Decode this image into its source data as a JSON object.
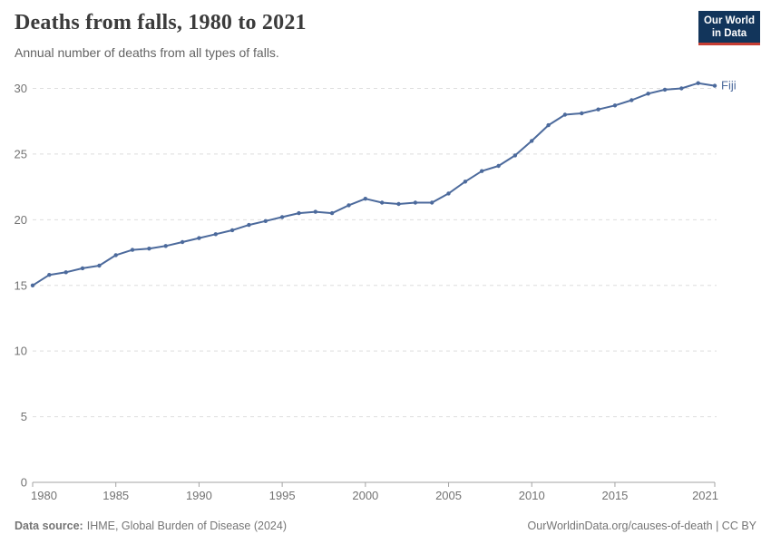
{
  "header": {
    "title": "Deaths from falls, 1980 to 2021",
    "subtitle": "Annual number of deaths from all types of falls.",
    "logo": {
      "line1": "Our World",
      "line2": "in Data"
    }
  },
  "chart_data": {
    "type": "line",
    "title": "Deaths from falls, 1980 to 2021",
    "subtitle": "Annual number of deaths from all types of falls.",
    "xlabel": "",
    "ylabel": "",
    "x": [
      1980,
      1981,
      1982,
      1983,
      1984,
      1985,
      1986,
      1987,
      1988,
      1989,
      1990,
      1991,
      1992,
      1993,
      1994,
      1995,
      1996,
      1997,
      1998,
      1999,
      2000,
      2001,
      2002,
      2003,
      2004,
      2005,
      2006,
      2007,
      2008,
      2009,
      2010,
      2011,
      2012,
      2013,
      2014,
      2015,
      2016,
      2017,
      2018,
      2019,
      2020,
      2021
    ],
    "series": [
      {
        "name": "Fiji",
        "color": "#4C6A9C",
        "values": [
          15.0,
          15.8,
          16.0,
          16.3,
          16.5,
          17.3,
          17.7,
          17.8,
          18.0,
          18.3,
          18.6,
          18.9,
          19.2,
          19.6,
          19.9,
          20.2,
          20.5,
          20.6,
          20.5,
          21.1,
          21.6,
          21.3,
          21.2,
          21.3,
          21.3,
          22.0,
          22.9,
          23.7,
          24.1,
          24.9,
          26.0,
          27.2,
          28.0,
          28.1,
          28.4,
          28.7,
          29.1,
          29.6,
          29.9,
          30.0,
          30.4,
          30.2
        ]
      }
    ],
    "x_ticks": [
      1980,
      1985,
      1990,
      1995,
      2000,
      2005,
      2010,
      2015,
      2021
    ],
    "y_ticks": [
      0,
      5,
      10,
      15,
      20,
      25,
      30
    ],
    "xlim": [
      1980,
      2021
    ],
    "ylim": [
      0,
      30
    ],
    "grid": "horizontal-dashed",
    "legend_position": "line-end-label"
  },
  "colors": {
    "line": "#4C6A9C",
    "grid": "#dedede",
    "axis": "#a3a3a3",
    "tick_label": "#737373",
    "logo_bg": "#12355b",
    "logo_red": "#c63d33"
  },
  "footer": {
    "source_label": "Data source:",
    "source": "IHME, Global Burden of Disease (2024)",
    "url": "OurWorldinData.org/causes-of-death",
    "separator": " | ",
    "license": "CC BY"
  }
}
